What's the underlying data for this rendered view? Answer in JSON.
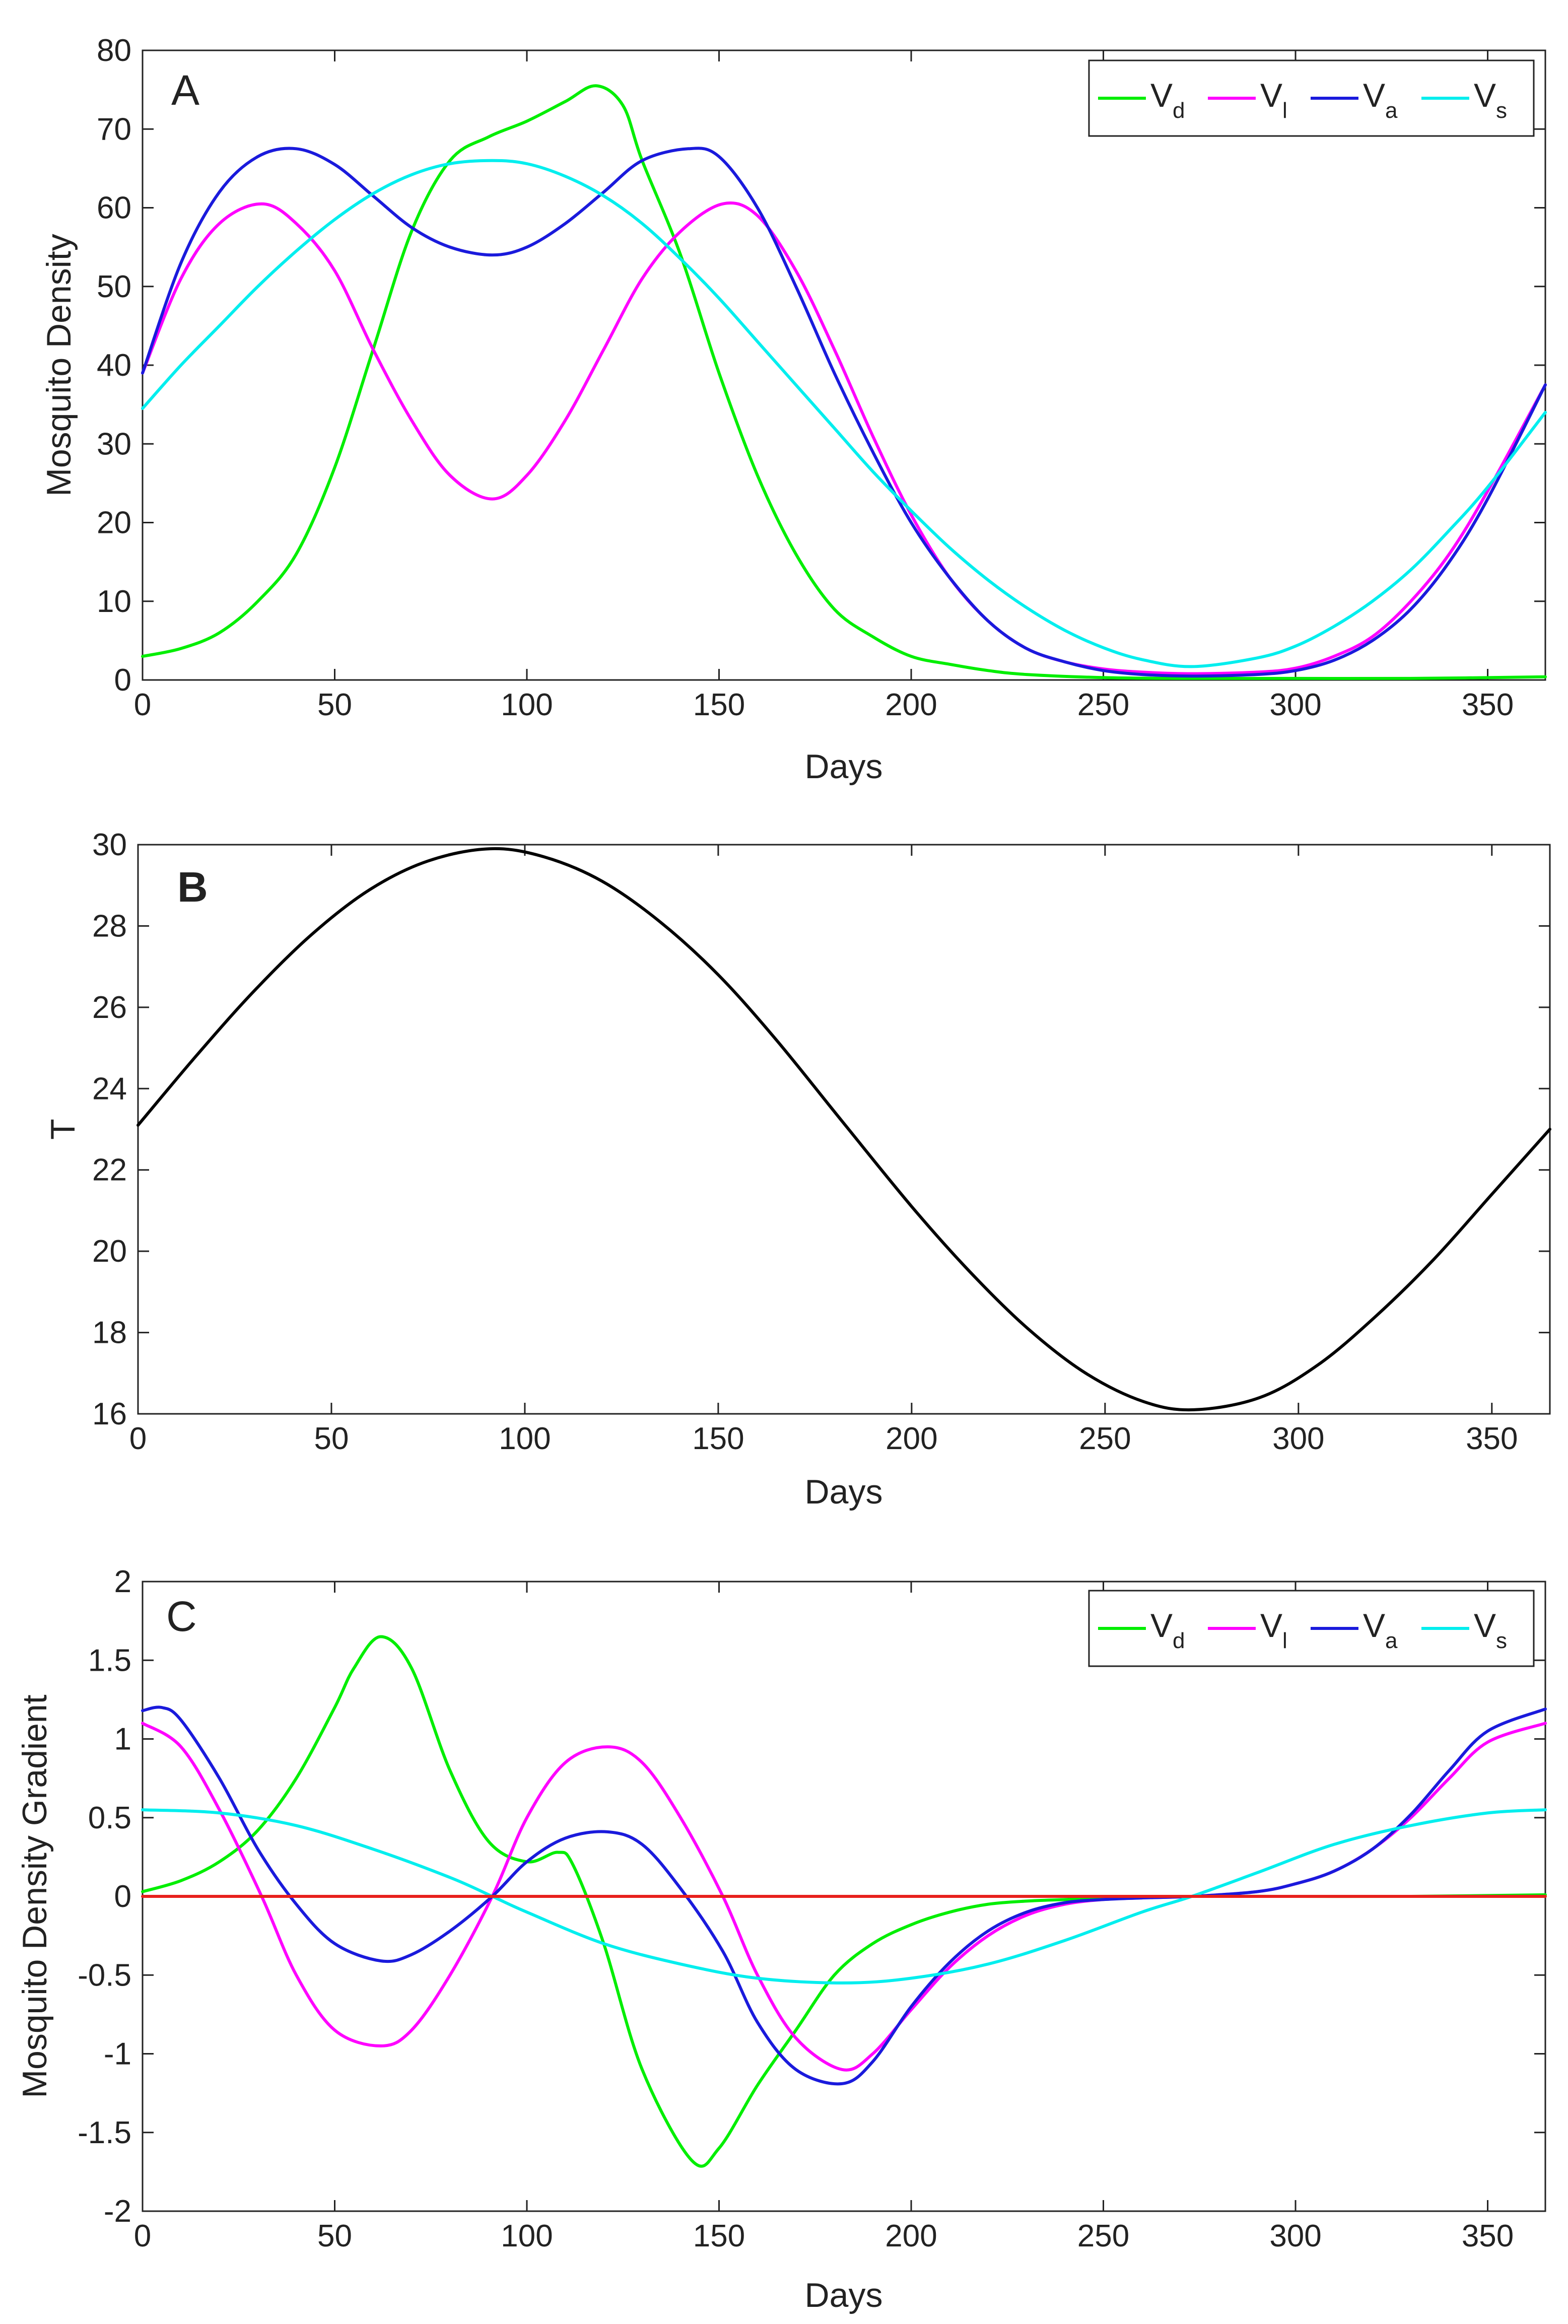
{
  "figure": {
    "panels": [
      {
        "id": "A",
        "title": "A",
        "type": "line",
        "xlabel": "Days",
        "ylabel": "Mosquito Density",
        "xlim": [
          0,
          365
        ],
        "ylim": [
          0,
          80
        ],
        "xticks": [
          0,
          50,
          100,
          150,
          200,
          250,
          300,
          350
        ],
        "xtick_labels": [
          "0",
          "50",
          "100",
          "150",
          "200",
          "250",
          "300",
          "350"
        ],
        "yticks": [
          0,
          10,
          20,
          30,
          40,
          50,
          60,
          70,
          80
        ],
        "ytick_labels": [
          "0",
          "10",
          "20",
          "30",
          "40",
          "50",
          "60",
          "70",
          "80"
        ],
        "legend": "top-right",
        "series": [
          {
            "name": "Vd",
            "label": "V",
            "sub": "d",
            "color": "#00ee00",
            "x": [
              0,
              10,
              20,
              30,
              40,
              50,
              60,
              70,
              80,
              90,
              100,
              110,
              118,
              125,
              130,
              140,
              150,
              160,
              170,
              180,
              190,
              200,
              210,
              220,
              230,
              250,
              270,
              300,
              330,
              365
            ],
            "y": [
              3,
              4,
              6,
              10,
              16,
              27,
              42,
              57,
              66,
              69,
              71,
              73.5,
              75.5,
              73,
              66,
              54,
              39,
              26,
              16,
              9,
              5.5,
              3,
              2,
              1.2,
              0.7,
              0.3,
              0.2,
              0.2,
              0.2,
              0.4
            ]
          },
          {
            "name": "Vl",
            "label": "V",
            "sub": "l",
            "color": "#ff00ff",
            "x": [
              0,
              10,
              20,
              31,
              40,
              50,
              60,
              70,
              80,
              91,
              100,
              110,
              120,
              130,
              140,
              151,
              160,
              170,
              180,
              190,
              200,
              210,
              220,
              230,
              240,
              250,
              260,
              273,
              290,
              300,
              310,
              320,
              330,
              340,
              350,
              365
            ],
            "y": [
              39,
              51,
              58,
              60.5,
              58,
              52,
              42,
              33,
              26,
              23,
              26,
              33,
              42,
              51,
              57,
              60.5,
              59,
              52,
              42,
              31,
              21,
              13,
              7.5,
              4,
              2.3,
              1.4,
              1,
              0.8,
              1,
              1.5,
              3,
              5.5,
              10,
              16,
              24,
              37.5
            ]
          },
          {
            "name": "Va",
            "label": "V",
            "sub": "a",
            "color": "#1a1adc",
            "x": [
              0,
              10,
              20,
              30,
              40,
              50,
              60,
              70,
              80,
              91,
              100,
              110,
              120,
              130,
              142,
              150,
              160,
              170,
              180,
              190,
              200,
              210,
              220,
              230,
              240,
              250,
              260,
              273,
              290,
              300,
              310,
              320,
              330,
              340,
              350,
              365
            ],
            "y": [
              39,
              53,
              62,
              66.5,
              67.5,
              65.5,
              61.5,
              57.5,
              55,
              54,
              55,
              58,
              62,
              66,
              67.5,
              66.5,
              60,
              50,
              39,
              29,
              20,
              13,
              7.5,
              4,
              2.3,
              1.2,
              0.7,
              0.5,
              0.7,
              1.2,
              2.5,
              5,
              9,
              15,
              23,
              37.5
            ]
          },
          {
            "name": "Vs",
            "label": "V",
            "sub": "s",
            "color": "#00eeee",
            "x": [
              0,
              10,
              20,
              30,
              40,
              50,
              60,
              70,
              80,
              91,
              100,
              110,
              120,
              130,
              140,
              150,
              160,
              170,
              180,
              190,
              200,
              210,
              220,
              230,
              240,
              250,
              260,
              273,
              290,
              300,
              310,
              320,
              330,
              340,
              350,
              365
            ],
            "y": [
              34.5,
              40,
              45,
              50,
              54.5,
              58.5,
              61.8,
              64.2,
              65.6,
              66,
              65.6,
              64,
              61.5,
              58,
              53.5,
              48.5,
              43,
              37.5,
              32,
              26.5,
              21.5,
              16.8,
              12.7,
              9.2,
              6.3,
              4.1,
              2.6,
              1.7,
              2.8,
              4.3,
              6.8,
              10,
              14,
              19,
              24.5,
              34
            ]
          }
        ]
      },
      {
        "id": "B",
        "title": "B",
        "type": "line",
        "xlabel": "Days",
        "ylabel": "T",
        "xlim": [
          0,
          365
        ],
        "ylim": [
          16,
          30
        ],
        "xticks": [
          0,
          50,
          100,
          150,
          200,
          250,
          300,
          350
        ],
        "xtick_labels": [
          "0",
          "50",
          "100",
          "150",
          "200",
          "250",
          "300",
          "350"
        ],
        "yticks": [
          16,
          18,
          20,
          22,
          24,
          26,
          28,
          30
        ],
        "ytick_labels": [
          "16",
          "18",
          "20",
          "22",
          "24",
          "26",
          "28",
          "30"
        ],
        "legend": "none",
        "series": [
          {
            "name": "T",
            "color": "#000000",
            "x": [
              0,
              15,
              30,
              45,
              60,
              75,
              91,
              105,
              120,
              135,
              150,
              165,
              182,
              200,
              215,
              230,
              245,
              260,
              273,
              290,
              305,
              320,
              335,
              350,
              365
            ],
            "y": [
              23.1,
              24.8,
              26.4,
              27.8,
              28.9,
              29.6,
              29.9,
              29.7,
              29.1,
              28.1,
              26.8,
              25.2,
              23.2,
              21.1,
              19.5,
              18.1,
              17,
              16.3,
              16.1,
              16.4,
              17.2,
              18.4,
              19.8,
              21.4,
              23
            ]
          }
        ]
      },
      {
        "id": "C",
        "title": "C",
        "type": "line",
        "xlabel": "Days",
        "ylabel": "Mosquito Density Gradient",
        "xlim": [
          0,
          365
        ],
        "ylim": [
          -2,
          2
        ],
        "xticks": [
          0,
          50,
          100,
          150,
          200,
          250,
          300,
          350
        ],
        "xtick_labels": [
          "0",
          "50",
          "100",
          "150",
          "200",
          "250",
          "300",
          "350"
        ],
        "yticks": [
          -2,
          -1.5,
          -1,
          -0.5,
          0,
          0.5,
          1,
          1.5,
          2
        ],
        "ytick_labels": [
          "-2",
          "-1.5",
          "-1",
          "-0.5",
          "0",
          "0.5",
          "1",
          "1.5",
          "2"
        ],
        "legend": "top-right",
        "series": [
          {
            "name": "Vd",
            "label": "V",
            "sub": "d",
            "color": "#00ee00",
            "x": [
              0,
              10,
              20,
              30,
              40,
              50,
              55,
              62,
              70,
              80,
              90,
              100,
              108,
              112,
              120,
              130,
              143,
              150,
              160,
              170,
              180,
              190,
              200,
              210,
              220,
              230,
              240,
              250,
              270,
              300,
              330,
              365
            ],
            "y": [
              0.03,
              0.1,
              0.22,
              0.42,
              0.75,
              1.2,
              1.45,
              1.65,
              1.45,
              0.8,
              0.35,
              0.22,
              0.28,
              0.2,
              -0.3,
              -1.1,
              -1.68,
              -1.6,
              -1.2,
              -0.85,
              -0.5,
              -0.3,
              -0.18,
              -0.1,
              -0.05,
              -0.03,
              -0.02,
              -0.01,
              0,
              0,
              0,
              0.01
            ]
          },
          {
            "name": "Vl",
            "label": "V",
            "sub": "l",
            "color": "#ff00ff",
            "x": [
              0,
              10,
              20,
              31,
              40,
              50,
              62,
              70,
              80,
              91,
              100,
              110,
              121,
              130,
              140,
              151,
              160,
              170,
              182,
              190,
              200,
              210,
              220,
              230,
              240,
              250,
              260,
              273,
              290,
              300,
              310,
              320,
              330,
              340,
              350,
              365
            ],
            "y": [
              1.1,
              0.95,
              0.55,
              0,
              -0.5,
              -0.85,
              -0.95,
              -0.85,
              -0.5,
              0,
              0.5,
              0.85,
              0.95,
              0.85,
              0.5,
              0,
              -0.5,
              -0.9,
              -1.1,
              -1.0,
              -0.72,
              -0.45,
              -0.25,
              -0.12,
              -0.05,
              -0.02,
              -0.01,
              0,
              0.03,
              0.08,
              0.16,
              0.3,
              0.5,
              0.75,
              0.98,
              1.1
            ]
          },
          {
            "name": "Va",
            "label": "V",
            "sub": "a",
            "color": "#1a1adc",
            "x": [
              0,
              5,
              10,
              20,
              30,
              40,
              50,
              62,
              70,
              80,
              91,
              100,
              110,
              121,
              130,
              140,
              151,
              160,
              170,
              182,
              190,
              200,
              210,
              220,
              230,
              240,
              250,
              260,
              273,
              290,
              300,
              310,
              320,
              330,
              340,
              350,
              365
            ],
            "y": [
              1.18,
              1.2,
              1.12,
              0.75,
              0.3,
              -0.05,
              -0.3,
              -0.41,
              -0.37,
              -0.22,
              0,
              0.22,
              0.37,
              0.41,
              0.33,
              0.05,
              -0.35,
              -0.8,
              -1.1,
              -1.19,
              -1.05,
              -0.7,
              -0.42,
              -0.22,
              -0.1,
              -0.04,
              -0.02,
              -0.01,
              0,
              0.03,
              0.08,
              0.16,
              0.3,
              0.52,
              0.8,
              1.05,
              1.19
            ]
          },
          {
            "name": "Vs",
            "label": "V",
            "sub": "s",
            "color": "#00eeee",
            "x": [
              0,
              20,
              40,
              60,
              80,
              91,
              100,
              120,
              140,
              160,
              182,
              200,
              220,
              240,
              260,
              273,
              290,
              310,
              330,
              350,
              365
            ],
            "y": [
              0.55,
              0.53,
              0.45,
              0.3,
              0.12,
              0,
              -0.1,
              -0.3,
              -0.43,
              -0.52,
              -0.55,
              -0.52,
              -0.43,
              -0.28,
              -0.1,
              0,
              0.15,
              0.33,
              0.45,
              0.53,
              0.55
            ]
          },
          {
            "name": "zero",
            "color": "#e8201c",
            "x": [
              0,
              365
            ],
            "y": [
              0,
              0
            ]
          }
        ]
      }
    ]
  },
  "chart_data": [
    {
      "type": "line",
      "title": "A",
      "xlabel": "Days",
      "ylabel": "Mosquito Density",
      "xlim": [
        0,
        365
      ],
      "ylim": [
        0,
        80
      ],
      "legend": [
        "Vd",
        "Vl",
        "Va",
        "Vs"
      ],
      "note": "series defined in figure.panels[0].series"
    },
    {
      "type": "line",
      "title": "B",
      "xlabel": "Days",
      "ylabel": "T",
      "xlim": [
        0,
        365
      ],
      "ylim": [
        16,
        30
      ],
      "note": "series defined in figure.panels[1].series"
    },
    {
      "type": "line",
      "title": "C",
      "xlabel": "Days",
      "ylabel": "Mosquito Density Gradient",
      "xlim": [
        0,
        365
      ],
      "ylim": [
        -2,
        2
      ],
      "legend": [
        "Vd",
        "Vl",
        "Va",
        "Vs"
      ],
      "note": "series defined in figure.panels[2].series"
    }
  ]
}
